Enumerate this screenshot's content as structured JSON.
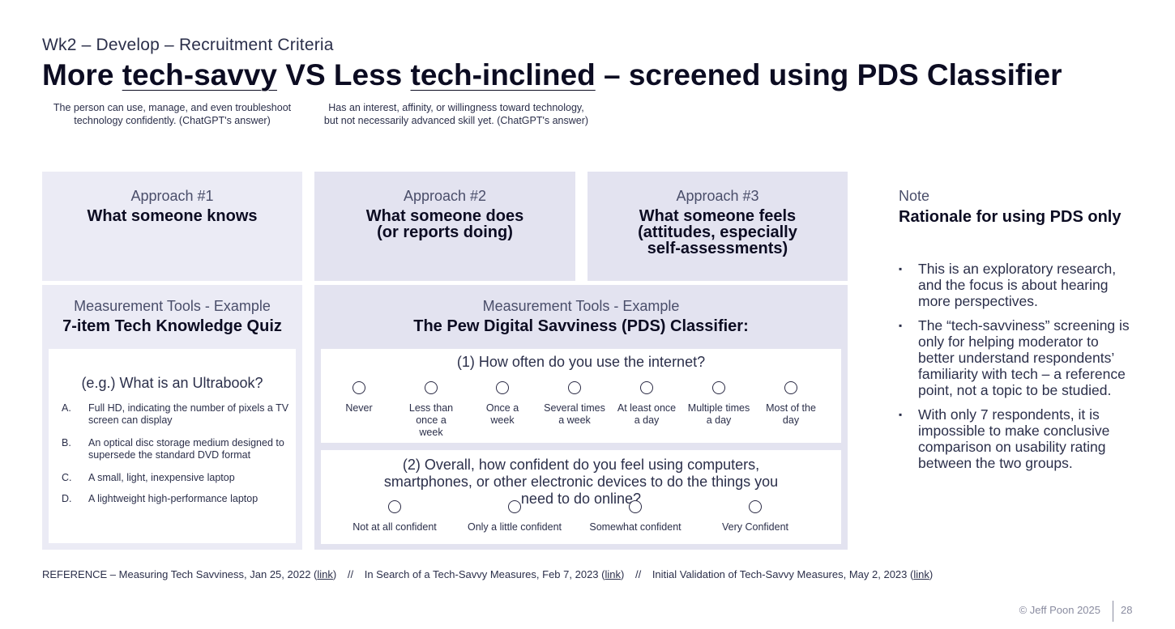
{
  "header": {
    "kicker": "Wk2 – Develop – Recruitment Criteria",
    "title_part1": "More ",
    "title_term1": "tech-savvy",
    "title_part2": " VS Less ",
    "title_term2": "tech-inclined",
    "title_part3": " – screened using PDS Classifier",
    "def1": "The person can use, manage, and even troubleshoot technology confidently. (ChatGPT's answer)",
    "def2": "Has an interest, affinity, or willingness toward technology, but not necessarily advanced skill yet. (ChatGPT's answer)"
  },
  "approaches": [
    {
      "sub": "Approach #1",
      "main": "What someone knows"
    },
    {
      "sub": "Approach #2",
      "main": "What someone does (or reports doing)"
    },
    {
      "sub": "Approach #3",
      "main": "What someone feels (attitudes, especially self-assessments)"
    }
  ],
  "tools": [
    {
      "sub": "Measurement Tools - Example",
      "main": "7-item Tech Knowledge Quiz"
    },
    {
      "sub": "Measurement Tools - Example",
      "main": "The Pew Digital Savviness (PDS) Classifier:"
    }
  ],
  "quiz": {
    "question": "(e.g.) What is an Ultrabook?",
    "options": [
      {
        "letter": "A.",
        "text": "Full HD, indicating the number of pixels a TV screen can display"
      },
      {
        "letter": "B.",
        "text": "An optical disc storage medium designed to supersede the standard DVD format"
      },
      {
        "letter": "C.",
        "text": "A small, light, inexpensive laptop"
      },
      {
        "letter": "D.",
        "text": "A lightweight high-performance laptop"
      }
    ]
  },
  "pds": {
    "q1": "(1)  How often do you use the internet?",
    "q1_options": [
      "Never",
      "Less than once a week",
      "Once a week",
      "Several times a week",
      "At least once a day",
      "Multiple times a day",
      "Most of the day"
    ],
    "q2": "(2)  Overall, how confident do you feel using computers, smartphones, or other electronic devices to do the things you need to do online?",
    "q2_options": [
      "Not at all confident",
      "Only a little confident",
      "Somewhat confident",
      "Very Confident"
    ]
  },
  "note": {
    "sub": "Note",
    "main": "Rationale for using PDS only",
    "bullet_marker": "▪",
    "bullets": [
      "This is an exploratory research, and the focus is about hearing more perspectives.",
      "The “tech-savviness” screening is only for helping moderator to better understand respondents’ familiarity with tech – a reference point, not a topic to be studied.",
      "With only 7 respondents, it is impossible to make conclusive comparison on usability rating between the two groups."
    ]
  },
  "references": {
    "ref1": "REFERENCE – Measuring Tech Savviness, Jan 25, 2022",
    "ref2": "In Search of a Tech-Savvy Measures, Feb 7, 2023",
    "ref3": "Initial Validation of Tech-Savvy Measures, May 2, 2023",
    "link_label": "link",
    "separator": "//"
  },
  "footer": {
    "copyright": "© Jeff Poon 2025",
    "page": "28"
  }
}
